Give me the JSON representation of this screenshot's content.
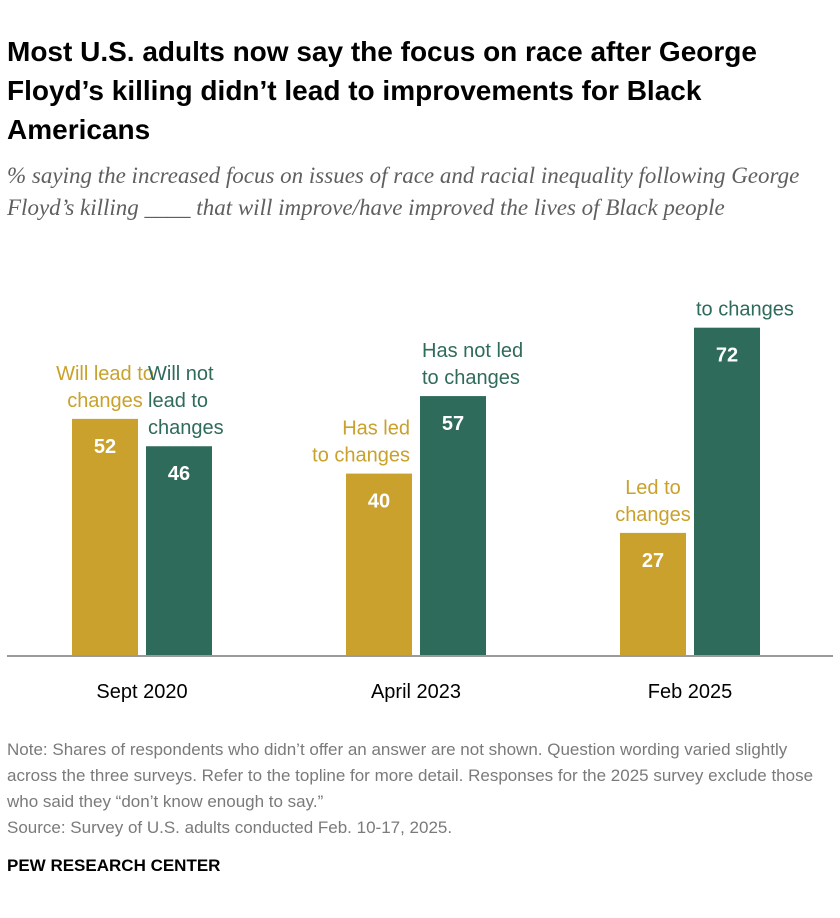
{
  "title": "Most U.S. adults now say the focus on race after George Floyd’s killing didn’t lead to improvements for Black Americans",
  "subtitle": "% saying the increased focus on issues of race and racial inequality following George Floyd’s killing ____ that will improve/have improved the lives of Black people",
  "colors": {
    "gold": "#C9A12C",
    "green": "#2F6B5B",
    "axis": "#9a9a9a"
  },
  "chart_data": {
    "type": "bar",
    "ylim": [
      0,
      100
    ],
    "grid": false,
    "categories": [
      "Sept 2020",
      "April 2023",
      "Feb 2025"
    ],
    "groups": [
      {
        "category": "Sept 2020",
        "bars": [
          {
            "label": "Will lead to changes",
            "value": 52,
            "color": "gold"
          },
          {
            "label": "Will not lead to changes",
            "value": 46,
            "color": "green"
          }
        ]
      },
      {
        "category": "April 2023",
        "bars": [
          {
            "label": "Has led to changes",
            "value": 40,
            "color": "gold"
          },
          {
            "label": "Has not led to changes",
            "value": 57,
            "color": "green"
          }
        ]
      },
      {
        "category": "Feb 2025",
        "bars": [
          {
            "label": "Led to changes",
            "value": 27,
            "color": "gold"
          },
          {
            "label": "Did not lead to changes",
            "value": 72,
            "color": "green"
          }
        ]
      }
    ]
  },
  "note": "Note: Shares of respondents who didn’t offer an answer are not shown. Question wording varied slightly across the three surveys. Refer to the topline for more detail. Responses for the 2025 survey exclude those who said they “don’t know enough to say.”",
  "source": "Source: Survey of U.S. adults conducted Feb. 10-17, 2025.",
  "brand": "PEW RESEARCH CENTER"
}
